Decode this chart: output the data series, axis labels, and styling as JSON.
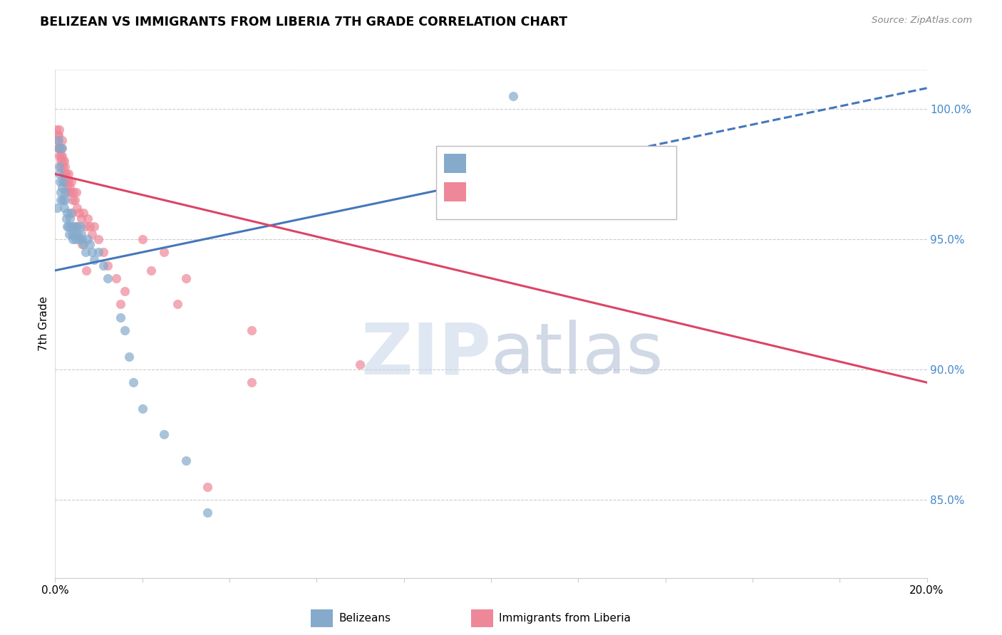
{
  "title": "BELIZEAN VS IMMIGRANTS FROM LIBERIA 7TH GRADE CORRELATION CHART",
  "source": "Source: ZipAtlas.com",
  "ylabel": "7th Grade",
  "ytick_labels": [
    "85.0%",
    "90.0%",
    "95.0%",
    "100.0%"
  ],
  "ytick_values": [
    85.0,
    90.0,
    95.0,
    100.0
  ],
  "xlim": [
    0.0,
    20.0
  ],
  "ylim": [
    82.0,
    101.5
  ],
  "blue_color": "#85AACC",
  "pink_color": "#EE8899",
  "blue_line_color": "#4477BB",
  "pink_line_color": "#DD4466",
  "blue_line_x0": 0.0,
  "blue_line_y0": 93.8,
  "blue_line_x1": 20.0,
  "blue_line_y1": 100.8,
  "blue_line_solid_end_x": 10.5,
  "pink_line_x0": 0.0,
  "pink_line_y0": 97.5,
  "pink_line_x1": 20.0,
  "pink_line_y1": 89.5,
  "blue_scatter_x": [
    0.05,
    0.07,
    0.08,
    0.09,
    0.1,
    0.11,
    0.12,
    0.13,
    0.15,
    0.15,
    0.17,
    0.18,
    0.2,
    0.22,
    0.23,
    0.25,
    0.27,
    0.28,
    0.3,
    0.32,
    0.33,
    0.35,
    0.37,
    0.38,
    0.4,
    0.42,
    0.45,
    0.47,
    0.5,
    0.52,
    0.55,
    0.58,
    0.6,
    0.62,
    0.65,
    0.7,
    0.75,
    0.8,
    0.85,
    0.9,
    1.0,
    1.1,
    1.2,
    1.5,
    1.6,
    1.7,
    1.8,
    2.0,
    2.5,
    3.0,
    3.5,
    10.5
  ],
  "blue_scatter_y": [
    96.2,
    98.8,
    98.5,
    97.8,
    97.5,
    97.2,
    96.8,
    96.5,
    98.5,
    97.0,
    97.2,
    96.5,
    96.2,
    96.8,
    96.5,
    95.8,
    95.5,
    96.0,
    95.5,
    95.2,
    95.8,
    96.0,
    95.5,
    95.2,
    95.0,
    95.5,
    95.2,
    95.0,
    95.5,
    95.2,
    95.0,
    95.5,
    95.2,
    95.0,
    94.8,
    94.5,
    95.0,
    94.8,
    94.5,
    94.2,
    94.5,
    94.0,
    93.5,
    92.0,
    91.5,
    90.5,
    89.5,
    88.5,
    87.5,
    86.5,
    84.5,
    100.5
  ],
  "pink_scatter_x": [
    0.03,
    0.05,
    0.07,
    0.08,
    0.09,
    0.1,
    0.11,
    0.12,
    0.13,
    0.14,
    0.15,
    0.16,
    0.17,
    0.18,
    0.2,
    0.21,
    0.22,
    0.23,
    0.25,
    0.27,
    0.28,
    0.3,
    0.31,
    0.33,
    0.35,
    0.37,
    0.4,
    0.42,
    0.45,
    0.48,
    0.5,
    0.55,
    0.6,
    0.65,
    0.7,
    0.75,
    0.8,
    0.85,
    0.9,
    1.0,
    1.1,
    1.2,
    1.4,
    1.5,
    1.6,
    2.0,
    2.2,
    2.5,
    3.0,
    4.5,
    0.06,
    0.09,
    0.13,
    0.19,
    0.24,
    0.29,
    0.38,
    0.48,
    0.62,
    0.72,
    7.0,
    4.5,
    2.8,
    3.5
  ],
  "pink_scatter_y": [
    99.2,
    98.8,
    99.0,
    98.5,
    98.2,
    99.2,
    98.5,
    98.0,
    97.8,
    98.5,
    98.2,
    98.8,
    98.0,
    97.8,
    98.0,
    97.5,
    97.8,
    97.2,
    97.5,
    97.0,
    97.2,
    97.5,
    97.2,
    97.0,
    96.8,
    97.2,
    96.5,
    96.8,
    96.5,
    96.8,
    96.2,
    96.0,
    95.8,
    96.0,
    95.5,
    95.8,
    95.5,
    95.2,
    95.5,
    95.0,
    94.5,
    94.0,
    93.5,
    92.5,
    93.0,
    95.0,
    93.8,
    94.5,
    93.5,
    91.5,
    99.0,
    98.5,
    98.2,
    97.5,
    97.2,
    96.8,
    96.0,
    95.5,
    94.8,
    93.8,
    90.2,
    89.5,
    92.5,
    85.5
  ]
}
